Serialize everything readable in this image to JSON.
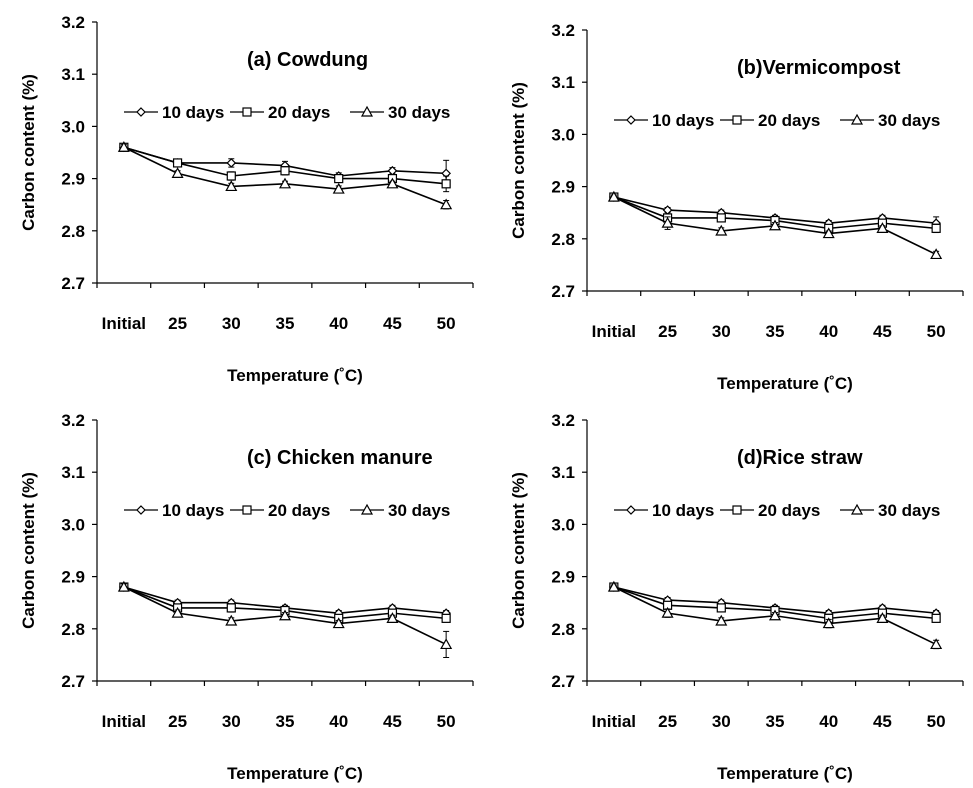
{
  "chart_data": [
    {
      "type": "line",
      "title": "(a) Cowdung",
      "xlabel": "Temperature (˚C)",
      "ylabel": "Carbon content (%)",
      "categories": [
        "Initial",
        "25",
        "30",
        "35",
        "40",
        "45",
        "50"
      ],
      "ylim": [
        2.7,
        3.2
      ],
      "yticks": [
        "2.7",
        "2.8",
        "2.9",
        "3.0",
        "3.1",
        "3.2"
      ],
      "legend_position": "top",
      "series": [
        {
          "name": "10 days",
          "marker": "diamond",
          "values": [
            2.96,
            2.93,
            2.93,
            2.925,
            2.905,
            2.915,
            2.91
          ],
          "errors": [
            0.005,
            0.005,
            0.008,
            0.008,
            0.006,
            0.006,
            0.025
          ]
        },
        {
          "name": "20 days",
          "marker": "square",
          "values": [
            2.96,
            2.93,
            2.905,
            2.915,
            2.9,
            2.9,
            2.89
          ],
          "errors": [
            0.005,
            0.005,
            0.008,
            0.008,
            0.006,
            0.006,
            0.015
          ]
        },
        {
          "name": "30 days",
          "marker": "triangle",
          "values": [
            2.96,
            2.91,
            2.885,
            2.89,
            2.88,
            2.89,
            2.85
          ],
          "errors": [
            0.005,
            0.005,
            0.006,
            0.005,
            0.006,
            0.005,
            0.008
          ]
        }
      ]
    },
    {
      "type": "line",
      "title": "(b)Vermicompost",
      "xlabel": "Temperature (˚C)",
      "ylabel": "Carbon content (%)",
      "categories": [
        "Initial",
        "25",
        "30",
        "35",
        "40",
        "45",
        "50"
      ],
      "ylim": [
        2.7,
        3.2
      ],
      "yticks": [
        "2.7",
        "2.8",
        "2.9",
        "3.0",
        "3.1",
        "3.2"
      ],
      "legend_position": "top",
      "series": [
        {
          "name": "10 days",
          "marker": "diamond",
          "values": [
            2.88,
            2.855,
            2.85,
            2.84,
            2.83,
            2.84,
            2.83
          ],
          "errors": [
            0.004,
            0.005,
            0.005,
            0.005,
            0.005,
            0.005,
            0.012
          ]
        },
        {
          "name": "20 days",
          "marker": "square",
          "values": [
            2.88,
            2.84,
            2.84,
            2.835,
            2.82,
            2.83,
            2.82
          ],
          "errors": [
            0.004,
            0.005,
            0.005,
            0.005,
            0.005,
            0.005,
            0.008
          ]
        },
        {
          "name": "30 days",
          "marker": "triangle",
          "values": [
            2.88,
            2.83,
            2.815,
            2.825,
            2.81,
            2.82,
            2.77
          ],
          "errors": [
            0.004,
            0.012,
            0.006,
            0.006,
            0.005,
            0.005,
            0.006
          ]
        }
      ]
    },
    {
      "type": "line",
      "title": "(c) Chicken manure",
      "xlabel": "Temperature (˚C)",
      "ylabel": "Carbon content (%)",
      "categories": [
        "Initial",
        "25",
        "30",
        "35",
        "40",
        "45",
        "50"
      ],
      "ylim": [
        2.7,
        3.2
      ],
      "yticks": [
        "2.7",
        "2.8",
        "2.9",
        "3.0",
        "3.1",
        "3.2"
      ],
      "legend_position": "top",
      "series": [
        {
          "name": "10 days",
          "marker": "diamond",
          "values": [
            2.88,
            2.85,
            2.85,
            2.84,
            2.83,
            2.84,
            2.83
          ],
          "errors": [
            0.006,
            0.005,
            0.005,
            0.005,
            0.005,
            0.005,
            0.005
          ]
        },
        {
          "name": "20 days",
          "marker": "square",
          "values": [
            2.88,
            2.84,
            2.84,
            2.835,
            2.82,
            2.83,
            2.82
          ],
          "errors": [
            0.006,
            0.005,
            0.008,
            0.006,
            0.006,
            0.006,
            0.006
          ]
        },
        {
          "name": "30 days",
          "marker": "triangle",
          "values": [
            2.88,
            2.83,
            2.815,
            2.825,
            2.81,
            2.82,
            2.77
          ],
          "errors": [
            0.006,
            0.006,
            0.006,
            0.006,
            0.006,
            0.006,
            0.025
          ]
        }
      ]
    },
    {
      "type": "line",
      "title": "(d)Rice straw",
      "xlabel": "Temperature (˚C)",
      "ylabel": "Carbon content (%)",
      "categories": [
        "Initial",
        "25",
        "30",
        "35",
        "40",
        "45",
        "50"
      ],
      "ylim": [
        2.7,
        3.2
      ],
      "yticks": [
        "2.7",
        "2.8",
        "2.9",
        "3.0",
        "3.1",
        "3.2"
      ],
      "legend_position": "top",
      "series": [
        {
          "name": "10 days",
          "marker": "diamond",
          "values": [
            2.88,
            2.855,
            2.85,
            2.84,
            2.83,
            2.84,
            2.83
          ],
          "errors": [
            0.004,
            0.005,
            0.005,
            0.005,
            0.005,
            0.005,
            0.005
          ]
        },
        {
          "name": "20 days",
          "marker": "square",
          "values": [
            2.88,
            2.845,
            2.84,
            2.835,
            2.82,
            2.83,
            2.82
          ],
          "errors": [
            0.004,
            0.006,
            0.005,
            0.005,
            0.008,
            0.005,
            0.005
          ]
        },
        {
          "name": "30 days",
          "marker": "triangle",
          "values": [
            2.88,
            2.83,
            2.815,
            2.825,
            2.81,
            2.82,
            2.77
          ],
          "errors": [
            0.004,
            0.008,
            0.006,
            0.006,
            0.008,
            0.006,
            0.008
          ]
        }
      ]
    }
  ]
}
